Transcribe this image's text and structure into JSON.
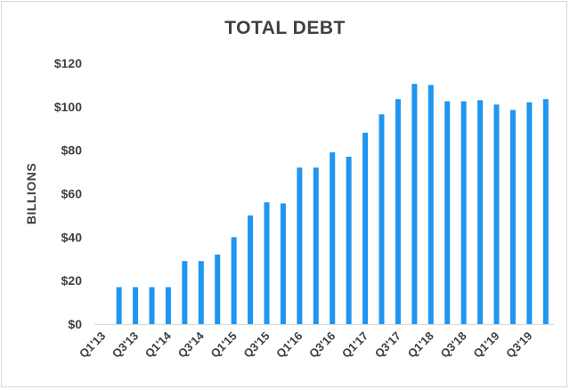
{
  "chart_data": {
    "type": "bar",
    "title": "TOTAL DEBT",
    "ylabel": "BILLIONS",
    "xlabel": "",
    "ylim": [
      0,
      120
    ],
    "yticks": [
      "$0",
      "$20",
      "$40",
      "$60",
      "$80",
      "$100",
      "$120"
    ],
    "ytick_values": [
      0,
      20,
      40,
      60,
      80,
      100,
      120
    ],
    "grid": false,
    "bar_color": "#1f96f0",
    "categories": [
      "Q1'13",
      "Q2'13",
      "Q3'13",
      "Q4'13",
      "Q1'14",
      "Q2'14",
      "Q3'14",
      "Q4'14",
      "Q1'15",
      "Q2'15",
      "Q3'15",
      "Q4'15",
      "Q1'16",
      "Q2'16",
      "Q3'16",
      "Q4'16",
      "Q1'17",
      "Q2'17",
      "Q3'17",
      "Q4'17",
      "Q1'18",
      "Q2'18",
      "Q3'18",
      "Q4'18",
      "Q1'19",
      "Q2'19",
      "Q3'19",
      "Q4'19"
    ],
    "visible_category_labels": [
      "Q1'13",
      "Q3'13",
      "Q1'14",
      "Q3'14",
      "Q1'15",
      "Q3'15",
      "Q1'16",
      "Q3'16",
      "Q1'17",
      "Q3'17",
      "Q1'18",
      "Q3'18",
      "Q1'19",
      "Q3'19"
    ],
    "values": [
      null,
      17,
      17,
      17,
      17,
      29,
      29,
      32,
      40,
      50,
      56,
      55.5,
      72,
      72,
      79,
      77,
      88,
      96.5,
      103.5,
      110.5,
      110,
      102.5,
      102.5,
      103,
      101,
      98.5,
      102,
      103.5
    ]
  }
}
